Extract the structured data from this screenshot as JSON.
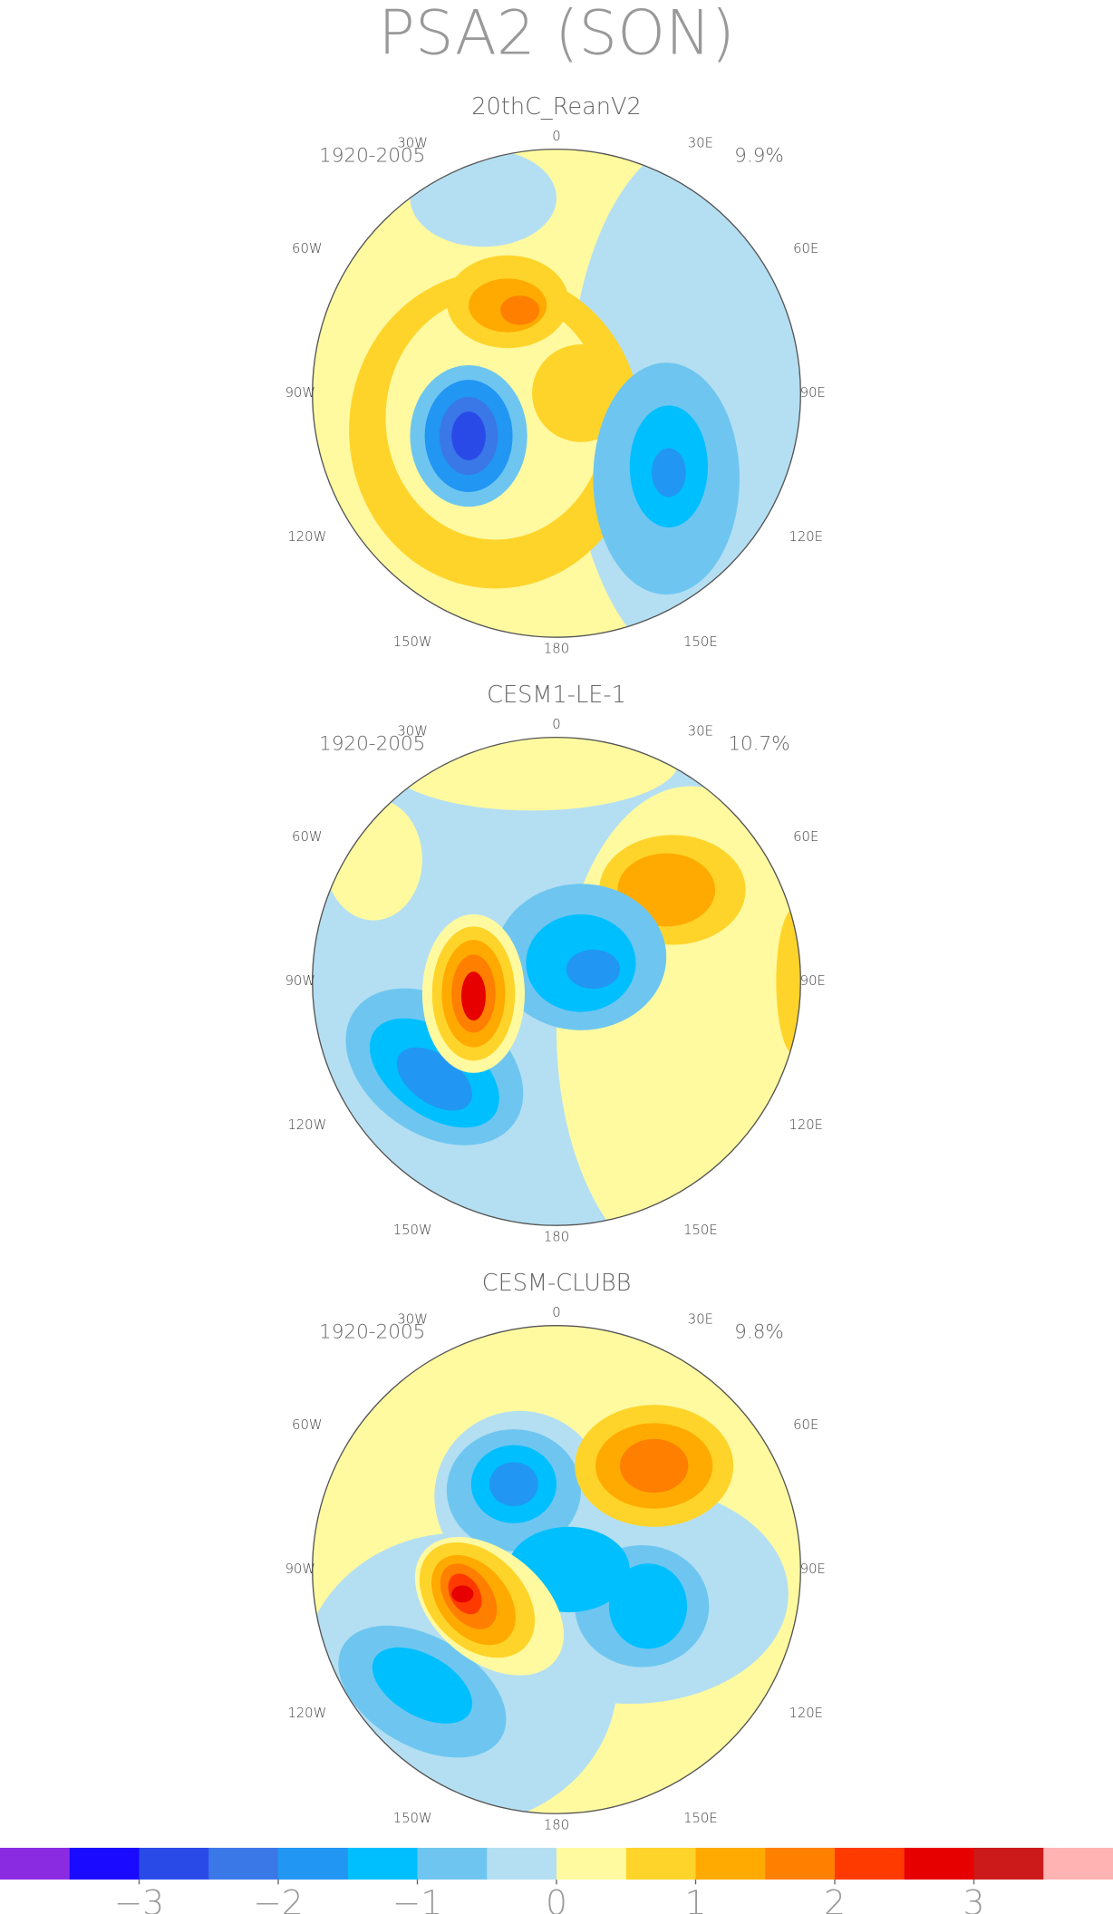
{
  "title": "PSA2 (SON)",
  "longitude_labels": [
    "0",
    "30E",
    "60E",
    "90E",
    "120E",
    "150E",
    "180",
    "150W",
    "120W",
    "90W",
    "60W",
    "30W"
  ],
  "panels": [
    {
      "title": "20thC_ReanV2",
      "period": "1920-2005",
      "variance": "9.9%"
    },
    {
      "title": "CESM1-LE-1",
      "period": "1920-2005",
      "variance": "10.7%"
    },
    {
      "title": "CESM-CLUBB",
      "period": "1920-2005",
      "variance": "9.8%"
    }
  ],
  "colorbar": {
    "colors": [
      "#8a2be2",
      "#1a0aff",
      "#2a4ae8",
      "#3a78e8",
      "#2196f3",
      "#00bfff",
      "#6ec6f0",
      "#b4dff2",
      "#fffaa0",
      "#ffd42a",
      "#ffaa00",
      "#ff7f00",
      "#ff3a00",
      "#e60000",
      "#cc1a1a",
      "#ffb3b3"
    ],
    "lim": [
      -4,
      4
    ],
    "ticks": [
      {
        "value": -3,
        "label": "−3"
      },
      {
        "value": -2,
        "label": "−2"
      },
      {
        "value": -1,
        "label": "−1"
      },
      0,
      1,
      2,
      3
    ]
  }
}
